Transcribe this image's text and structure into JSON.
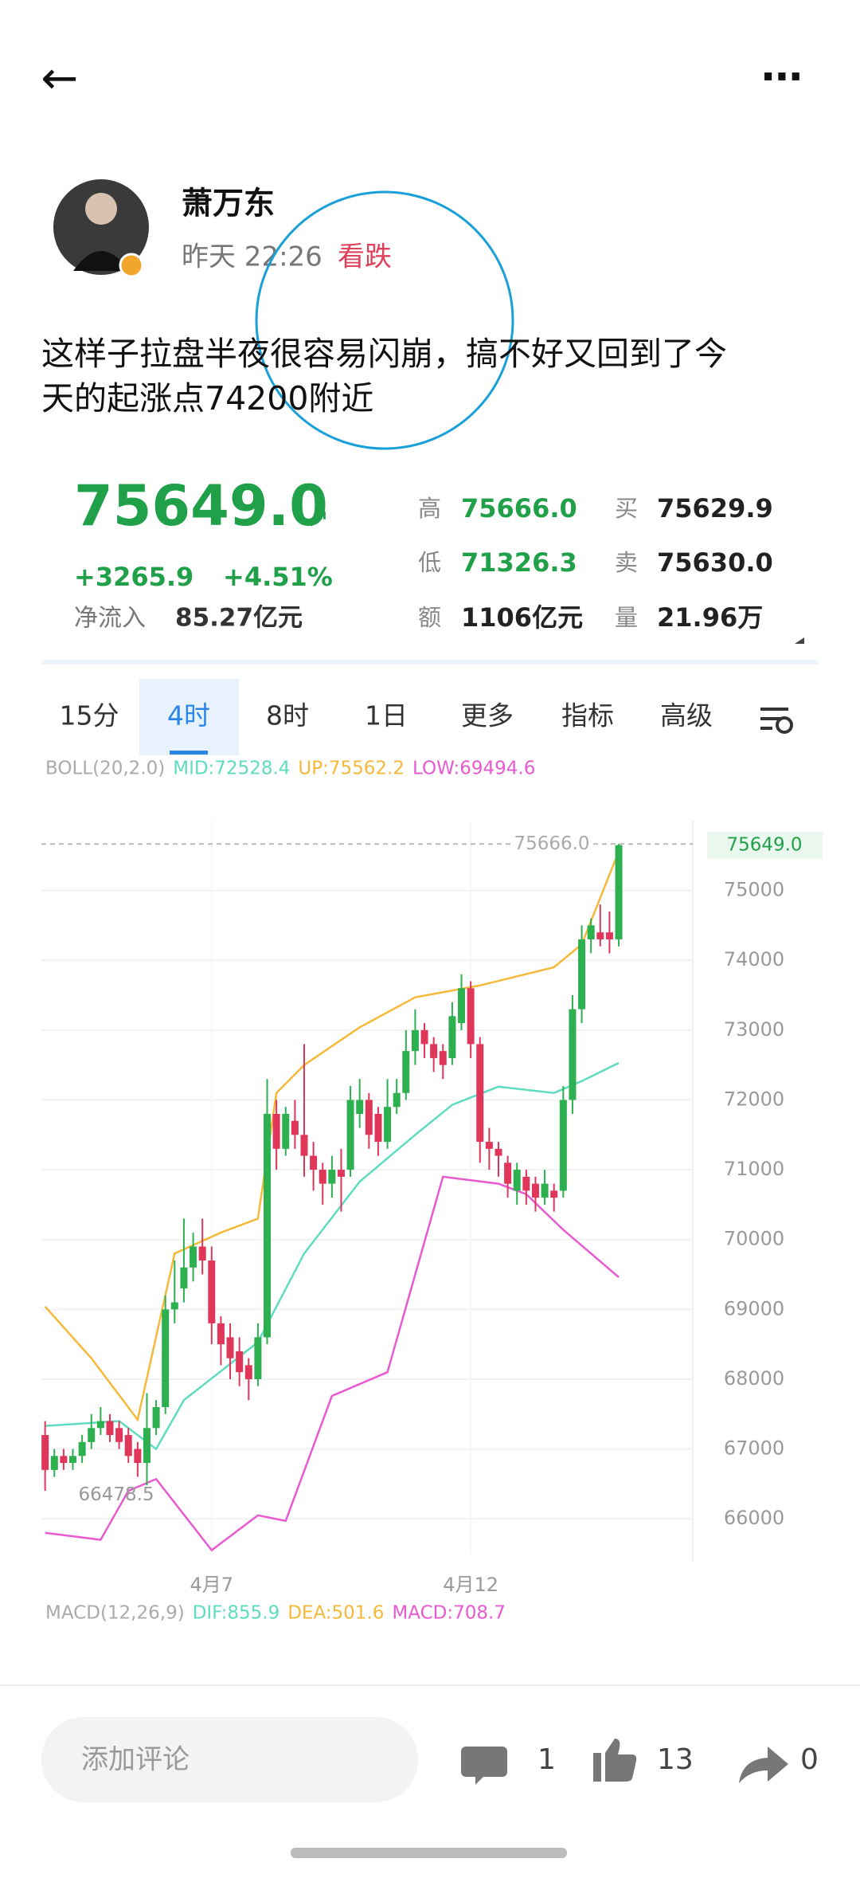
{
  "header": {
    "back": "←",
    "menu": "⋯"
  },
  "post": {
    "author": "萧万东",
    "time": "昨天 22:26",
    "stance": "看跌",
    "lines": [
      "这样子拉盘半夜很容易闪崩，搞不好又回到了今",
      "天的起涨点74200附近"
    ]
  },
  "quote": {
    "price": "75649.0",
    "arrow": "↗",
    "change": "+3265.9",
    "change_pct": "+4.51%",
    "inflow_label": "净流入",
    "inflow": "85.27亿元",
    "stats": [
      {
        "label": "高",
        "value": "75666.0"
      },
      {
        "label": "买",
        "value": "75629.9"
      },
      {
        "label": "低",
        "value": "71326.3"
      },
      {
        "label": "卖",
        "value": "75630.0"
      },
      {
        "label": "额",
        "value": "1106亿元"
      },
      {
        "label": "量",
        "value": "21.96万"
      }
    ]
  },
  "tabs": [
    "15分",
    "4时",
    "8时",
    "1日",
    "更多",
    "指标",
    "高级"
  ],
  "active_tab": 1,
  "boll_label": [
    "BOLL(20,2.0)",
    "MID:72528.4",
    "UP:75562.2",
    "LOW:69494.6"
  ],
  "macd_label": [
    "MACD(12,26,9)",
    "DIF:855.9",
    "DEA:501.6",
    "MACD:708.7"
  ],
  "chart_data": {
    "type": "candlestick",
    "up_color": "#2db04f",
    "down_color": "#e0365a",
    "ylim": [
      65500,
      76000
    ],
    "yticks": [
      66000,
      67000,
      68000,
      69000,
      70000,
      71000,
      72000,
      73000,
      74000,
      75000
    ],
    "xlim": [
      -0.4,
      70
    ],
    "xticks": [
      {
        "value": 18,
        "label": "4月7"
      },
      {
        "value": 46,
        "label": "4月12"
      }
    ],
    "open": [
      67200,
      66700,
      66900,
      66800,
      66900,
      67100,
      67300,
      67400,
      67300,
      67200,
      67000,
      66800,
      67300,
      67600,
      69000,
      69300,
      69600,
      69900,
      69700,
      68800,
      68600,
      68400,
      68200,
      68000,
      68600,
      71800,
      71300,
      71700,
      71500,
      71200,
      71000,
      70800,
      71000,
      71000,
      71800,
      72000,
      71800,
      71400,
      71900,
      72100,
      72700,
      73000,
      72800,
      72700,
      72600,
      73100,
      73600,
      72800,
      71400,
      71300,
      71100,
      70700,
      70900,
      70800,
      70600,
      70700,
      70700,
      72000,
      73300,
      74300,
      74400,
      74400,
      74300
    ],
    "high": [
      67400,
      67000,
      67000,
      67000,
      67200,
      67500,
      67600,
      67500,
      67400,
      67300,
      67100,
      67800,
      67700,
      69200,
      69700,
      70300,
      70100,
      70300,
      69900,
      68900,
      68800,
      68600,
      68300,
      68800,
      72300,
      72000,
      71900,
      72000,
      72800,
      71400,
      71100,
      71200,
      71300,
      72200,
      72300,
      72100,
      71900,
      72300,
      72300,
      73000,
      73300,
      73100,
      72900,
      72800,
      73400,
      73800,
      73700,
      72900,
      71600,
      71400,
      71200,
      71100,
      71000,
      70900,
      71000,
      70800,
      72200,
      73500,
      74500,
      74600,
      74800,
      74700,
      75666
    ],
    "low": [
      66400,
      66600,
      66700,
      66700,
      66800,
      67000,
      67200,
      67100,
      67000,
      66800,
      66600,
      66478.5,
      67200,
      67500,
      68800,
      69100,
      69400,
      69500,
      68500,
      68200,
      68000,
      67900,
      67700,
      67900,
      68500,
      71000,
      71200,
      71300,
      70900,
      70700,
      70500,
      70600,
      70400,
      70900,
      71600,
      71300,
      71200,
      71300,
      71800,
      72000,
      72500,
      72600,
      72400,
      72300,
      72500,
      73000,
      72600,
      71100,
      71000,
      70900,
      70600,
      70500,
      70500,
      70400,
      70500,
      70400,
      70600,
      71800,
      73100,
      74100,
      74200,
      74100,
      74200
    ],
    "close": [
      66700,
      66900,
      66800,
      66900,
      67100,
      67300,
      67400,
      67200,
      67100,
      66900,
      66800,
      67300,
      67600,
      69000,
      69100,
      69600,
      69900,
      69700,
      68800,
      68500,
      68300,
      68100,
      68000,
      68600,
      71800,
      71300,
      71800,
      71500,
      71200,
      71000,
      70800,
      71000,
      70900,
      72000,
      72000,
      71500,
      71400,
      71900,
      72100,
      72700,
      73000,
      72800,
      72600,
      72500,
      73200,
      73600,
      72800,
      71400,
      71300,
      71200,
      70800,
      71000,
      70700,
      70600,
      70800,
      70600,
      72000,
      73300,
      74300,
      74500,
      74300,
      74300,
      75649
    ],
    "series": [
      {
        "color": "#f5b93a",
        "x": [
          0,
          5,
          10,
          14,
          19,
          23,
          25,
          28,
          34,
          40,
          47,
          55,
          58,
          62
        ],
        "values": [
          69040,
          68300,
          67420,
          69800,
          70100,
          70300,
          72100,
          72500,
          73040,
          73470,
          73640,
          73900,
          74230,
          75560
        ]
      },
      {
        "color": "#5fdcc0",
        "x": [
          0,
          8,
          12,
          15,
          23,
          28,
          34,
          40,
          44,
          49,
          55,
          58,
          62
        ],
        "values": [
          67330,
          67400,
          67000,
          67700,
          68530,
          69800,
          70830,
          71500,
          71930,
          72190,
          72100,
          72270,
          72530
        ]
      },
      {
        "color": "#e85ad0",
        "x": [
          0,
          6,
          9,
          12,
          18,
          23,
          26,
          31,
          37,
          43,
          49,
          52,
          56,
          62
        ],
        "values": [
          65800,
          65700,
          66400,
          66570,
          65550,
          66050,
          65970,
          67760,
          68100,
          70900,
          70800,
          70650,
          70140,
          69460
        ]
      }
    ],
    "high_marker": {
      "value": 75666,
      "label": "75666.0"
    },
    "last_marker": {
      "value": 75649,
      "label": "75649.0"
    },
    "low_marker": 66478.5
  },
  "footer": {
    "placeholder": "添加评论",
    "comments": "1",
    "likes": "13",
    "shares": "0"
  }
}
